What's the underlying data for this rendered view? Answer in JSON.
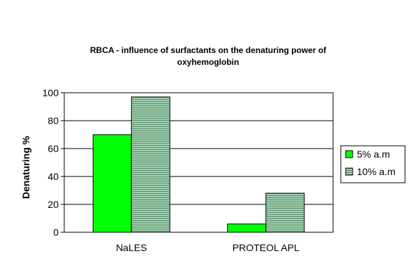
{
  "chart_data": {
    "type": "bar",
    "title_lines": [
      "RBCA - influence of surfactants on the denaturing power of",
      "oxyhemoglobin"
    ],
    "xlabel": "",
    "ylabel": "Denaturing %",
    "categories": [
      "NaLES",
      "PROTEOL APL"
    ],
    "ylim": [
      0,
      100
    ],
    "yticks": [
      0,
      20,
      40,
      60,
      80,
      100
    ],
    "grid": "horizontal",
    "legend_position": "right",
    "series": [
      {
        "name": "5% a.m",
        "values": [
          70,
          6
        ],
        "color": "#00ff00",
        "pattern": "solid"
      },
      {
        "name": "10% a.m",
        "values": [
          97,
          28
        ],
        "color": "#88bb99",
        "pattern": "horizontal-lines"
      }
    ]
  }
}
